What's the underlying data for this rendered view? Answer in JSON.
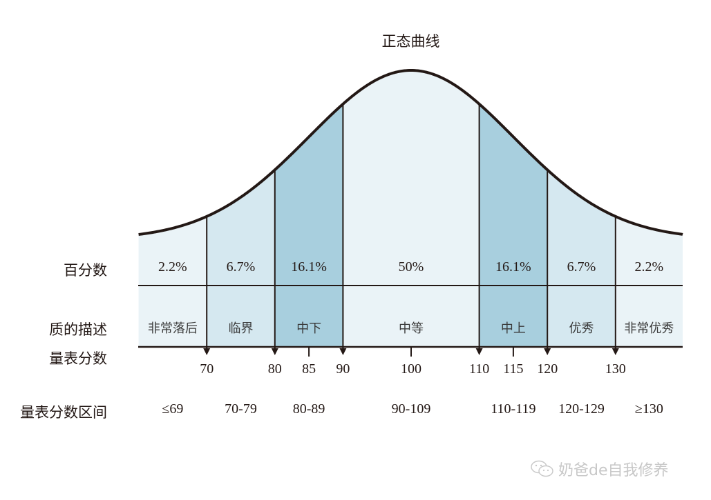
{
  "chart_data": {
    "type": "area",
    "title": "正态曲线",
    "xlabel": "量表分数",
    "ylabel": "",
    "row_labels": {
      "percent": "百分数",
      "description": "质的描述",
      "score": "量表分数",
      "score_range": "量表分数区间"
    },
    "segments": [
      {
        "percent": "2.2%",
        "description": "非常落后",
        "range": "≤69",
        "from": 60,
        "to": 70,
        "color": "#eaf3f7"
      },
      {
        "percent": "6.7%",
        "description": "临界",
        "range": "70-79",
        "from": 70,
        "to": 80,
        "color": "#d5e8f0"
      },
      {
        "percent": "16.1%",
        "description": "中下",
        "range": "80-89",
        "from": 80,
        "to": 90,
        "color": "#a8cfde"
      },
      {
        "percent": "50%",
        "description": "中等",
        "range": "90-109",
        "from": 90,
        "to": 110,
        "color": "#eaf3f7"
      },
      {
        "percent": "16.1%",
        "description": "中上",
        "range": "110-119",
        "from": 110,
        "to": 120,
        "color": "#a8cfde"
      },
      {
        "percent": "6.7%",
        "description": "优秀",
        "range": "120-129",
        "from": 120,
        "to": 130,
        "color": "#d5e8f0"
      },
      {
        "percent": "2.2%",
        "description": "非常优秀",
        "range": "≥130",
        "from": 130,
        "to": 140,
        "color": "#eaf3f7"
      }
    ],
    "x_ticks": [
      70,
      80,
      85,
      90,
      100,
      110,
      115,
      120,
      130
    ],
    "arrow_ticks": [
      70,
      80,
      90,
      110,
      120,
      130
    ],
    "plain_ticks": [
      85,
      100,
      115
    ],
    "mean": 100,
    "sd": 15,
    "xlim": [
      60,
      140
    ],
    "grid": false,
    "legend": "none"
  },
  "watermark": {
    "icon": "wechat-icon",
    "text": "奶爸de自我修养"
  }
}
